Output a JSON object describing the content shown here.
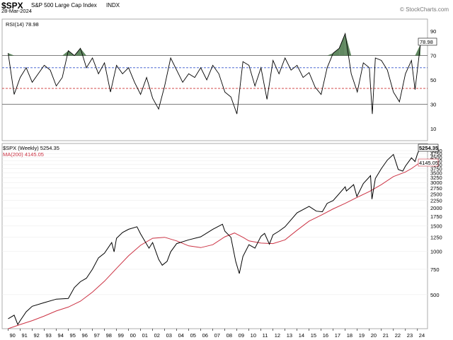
{
  "header": {
    "symbol": "$SPX",
    "name": "S&P 500 Large Cap Index",
    "exchange": "INDX",
    "date": "28-Mar-2024",
    "watermark": "© StockCharts.com"
  },
  "chart_data": [
    {
      "type": "line",
      "panel": "rsi",
      "legend": "RSI(14) 78.98",
      "current_value": "78.98",
      "ylim": [
        0,
        100
      ],
      "yticks": [
        10,
        30,
        50,
        70,
        90
      ],
      "reference_lines": [
        {
          "value": 70,
          "color": "#555555",
          "style": "solid"
        },
        {
          "value": 60,
          "color": "#3355cc",
          "style": "dashed"
        },
        {
          "value": 43,
          "color": "#cc3333",
          "style": "dashed"
        },
        {
          "value": 30,
          "color": "#555555",
          "style": "solid"
        }
      ],
      "overbought_fill": "#3a6b3a",
      "line_color": "#000000",
      "x": [
        1990.0,
        1990.5,
        1991.0,
        1991.5,
        1992.0,
        1992.5,
        1993.0,
        1993.5,
        1994.0,
        1994.5,
        1995.0,
        1995.5,
        1996.0,
        1996.5,
        1997.0,
        1997.5,
        1998.0,
        1998.5,
        1999.0,
        1999.5,
        2000.0,
        2000.5,
        2001.0,
        2001.5,
        2002.0,
        2002.5,
        2003.0,
        2003.5,
        2004.0,
        2004.5,
        2005.0,
        2005.5,
        2006.0,
        2006.5,
        2007.0,
        2007.5,
        2008.0,
        2008.5,
        2009.0,
        2009.5,
        2010.0,
        2010.5,
        2011.0,
        2011.5,
        2012.0,
        2012.5,
        2013.0,
        2013.5,
        2014.0,
        2014.5,
        2015.0,
        2015.5,
        2016.0,
        2016.5,
        2017.0,
        2017.5,
        2018.0,
        2018.5,
        2019.0,
        2019.5,
        2020.0,
        2020.25,
        2020.5,
        2021.0,
        2021.5,
        2022.0,
        2022.5,
        2023.0,
        2023.5,
        2023.8,
        2024.24
      ],
      "values": [
        72,
        38,
        52,
        60,
        48,
        55,
        62,
        58,
        45,
        52,
        74,
        70,
        76,
        60,
        68,
        55,
        64,
        40,
        62,
        55,
        60,
        48,
        38,
        52,
        35,
        26,
        45,
        68,
        58,
        48,
        55,
        52,
        60,
        50,
        62,
        55,
        40,
        36,
        22,
        65,
        62,
        45,
        60,
        34,
        66,
        55,
        68,
        58,
        62,
        52,
        56,
        44,
        38,
        60,
        72,
        76,
        88,
        55,
        40,
        64,
        60,
        22,
        68,
        66,
        58,
        40,
        32,
        55,
        66,
        42,
        78.98
      ]
    },
    {
      "type": "line",
      "panel": "price",
      "legend": "$SPX (Weekly) 5254.35",
      "ma_legend": "MA(200) 4145.05",
      "last_price_label": "5254.35",
      "last_ma_label": "4145.05",
      "y_scale": "log",
      "ylim": [
        290,
        5600
      ],
      "yticks": [
        500,
        750,
        1000,
        1250,
        1500,
        1750,
        2000,
        2250,
        2500,
        2750,
        3000,
        3250,
        3500,
        3750,
        4000,
        4250,
        4500,
        4750,
        5000
      ],
      "xticks": [
        "90",
        "91",
        "92",
        "93",
        "94",
        "95",
        "96",
        "97",
        "98",
        "99",
        "00",
        "01",
        "02",
        "03",
        "04",
        "05",
        "06",
        "07",
        "08",
        "09",
        "10",
        "11",
        "12",
        "13",
        "14",
        "15",
        "16",
        "17",
        "18",
        "19",
        "20",
        "21",
        "22",
        "23",
        "24"
      ],
      "price_color": "#000000",
      "ma_color": "#cc3344",
      "series": [
        {
          "name": "$SPX (Weekly)",
          "x": [
            1990.0,
            1990.5,
            1990.8,
            1991.0,
            1991.5,
            1992.0,
            1993.0,
            1994.0,
            1995.0,
            1995.5,
            1996.0,
            1996.5,
            1997.0,
            1997.5,
            1998.0,
            1998.6,
            1998.8,
            1999.0,
            1999.5,
            2000.0,
            2000.7,
            2001.0,
            2001.7,
            2002.0,
            2002.5,
            2002.8,
            2003.2,
            2003.5,
            2004.0,
            2005.0,
            2006.0,
            2007.0,
            2007.8,
            2008.0,
            2008.5,
            2008.9,
            2009.2,
            2009.5,
            2010.0,
            2010.5,
            2011.0,
            2011.3,
            2011.7,
            2012.0,
            2012.5,
            2013.0,
            2014.0,
            2015.0,
            2015.6,
            2016.1,
            2016.5,
            2017.0,
            2018.0,
            2018.1,
            2018.7,
            2018.97,
            2019.5,
            2020.1,
            2020.22,
            2020.5,
            2021.0,
            2021.5,
            2022.0,
            2022.4,
            2022.78,
            2023.0,
            2023.5,
            2023.8,
            2024.0,
            2024.24
          ],
          "values": [
            340,
            360,
            310,
            330,
            380,
            415,
            440,
            465,
            470,
            560,
            615,
            650,
            750,
            900,
            970,
            1150,
            990,
            1230,
            1350,
            1420,
            1480,
            1320,
            1050,
            1150,
            880,
            800,
            850,
            990,
            1130,
            1200,
            1260,
            1420,
            1540,
            1380,
            1250,
            850,
            700,
            920,
            1110,
            1050,
            1270,
            1330,
            1120,
            1300,
            1380,
            1480,
            1850,
            2050,
            1900,
            1880,
            2150,
            2250,
            2800,
            2620,
            2900,
            2400,
            2950,
            3350,
            2300,
            3200,
            3750,
            4300,
            4700,
            3700,
            3600,
            3900,
            4450,
            4200,
            4750,
            5254.35
          ]
        },
        {
          "name": "MA(200)",
          "x": [
            1990.0,
            1991.0,
            1992.0,
            1993.0,
            1994.0,
            1995.0,
            1996.0,
            1997.0,
            1998.0,
            1999.0,
            2000.0,
            2001.0,
            2002.0,
            2003.0,
            2004.0,
            2005.0,
            2006.0,
            2007.0,
            2008.0,
            2008.8,
            2009.5,
            2010.0,
            2011.0,
            2012.0,
            2013.0,
            2014.0,
            2015.0,
            2016.0,
            2017.0,
            2018.0,
            2019.0,
            2020.0,
            2021.0,
            2022.0,
            2023.0,
            2023.5,
            2024.24
          ],
          "values": [
            290,
            310,
            330,
            355,
            385,
            410,
            450,
            520,
            620,
            760,
            930,
            1100,
            1230,
            1250,
            1180,
            1090,
            1060,
            1110,
            1260,
            1340,
            1250,
            1180,
            1140,
            1130,
            1200,
            1400,
            1620,
            1780,
            1970,
            2150,
            2370,
            2600,
            2900,
            3300,
            3550,
            3750,
            4145.05
          ]
        }
      ]
    }
  ]
}
